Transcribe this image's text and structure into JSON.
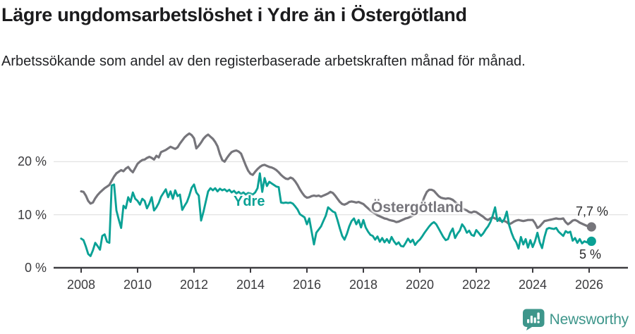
{
  "header": {
    "title": "Lägre ungdomsarbetslöshet i Ydre än i Östergötland",
    "subtitle": "Arbetssökande som andel av den registerbaserade arbetskraften månad för månad."
  },
  "colors": {
    "teal": "#0aa195",
    "gray": "#76757b",
    "axis": "#3d3c40",
    "grid": "#e4e4e4",
    "text": "#222326",
    "logo": "#3e968b"
  },
  "chart_data": {
    "type": "line",
    "x_start_year": 2008,
    "points_per_year": 12,
    "x_end_label_year": 2026,
    "x_axis_ticks": [
      2008,
      2010,
      2012,
      2014,
      2016,
      2018,
      2020,
      2022,
      2024,
      2026
    ],
    "y_axis_ticks": [
      {
        "value": 0,
        "label": "0 %"
      },
      {
        "value": 10,
        "label": "10 %"
      },
      {
        "value": 20,
        "label": "20 %"
      }
    ],
    "ylim": [
      0,
      26
    ],
    "grid": "horizontal",
    "legend_position": "inline-annotations",
    "series": [
      {
        "name": "Östergötland",
        "color": "#76757b",
        "width": 3.2,
        "label_annotation": "Östergötland",
        "end_label": "7,7 %",
        "end_value": 7.7,
        "values": [
          14.4,
          14.3,
          13.6,
          12.6,
          12.1,
          12.3,
          13.1,
          13.7,
          14.2,
          14.6,
          15.0,
          15.3,
          15.6,
          16.4,
          17.2,
          17.8,
          18.1,
          18.4,
          18.2,
          18.7,
          19.0,
          18.4,
          18.0,
          18.8,
          19.6,
          20.0,
          20.3,
          20.4,
          20.7,
          20.9,
          20.7,
          20.4,
          21.1,
          20.8,
          21.8,
          22.0,
          22.2,
          22.5,
          22.8,
          22.6,
          22.4,
          22.7,
          23.4,
          24.0,
          24.6,
          25.0,
          25.3,
          25.0,
          24.4,
          22.5,
          23.0,
          23.6,
          24.3,
          24.8,
          25.1,
          24.7,
          24.3,
          23.7,
          22.9,
          21.4,
          20.3,
          20.0,
          20.7,
          21.3,
          21.8,
          22.0,
          22.1,
          21.9,
          21.5,
          20.4,
          19.3,
          18.3,
          17.7,
          17.5,
          18.1,
          18.6,
          19.0,
          19.3,
          19.4,
          19.2,
          19.0,
          18.9,
          18.7,
          18.4,
          18.0,
          17.5,
          17.1,
          16.8,
          16.7,
          17.0,
          16.8,
          16.3,
          15.6,
          14.8,
          14.1,
          13.5,
          13.2,
          13.3,
          13.5,
          13.6,
          13.5,
          13.6,
          13.4,
          13.6,
          13.8,
          14.0,
          14.3,
          14.1,
          13.6,
          13.0,
          12.4,
          12.0,
          11.9,
          12.1,
          12.4,
          12.5,
          12.4,
          12.3,
          12.4,
          12.2,
          12.0,
          11.6,
          11.2,
          10.8,
          10.5,
          10.2,
          9.9,
          9.7,
          9.5,
          9.3,
          9.2,
          9.0,
          8.9,
          8.8,
          8.6,
          8.7,
          8.9,
          9.1,
          9.3,
          9.4,
          9.6,
          9.8,
          10.1,
          10.6,
          11.3,
          12.2,
          13.4,
          14.3,
          14.7,
          14.7,
          14.5,
          14.0,
          13.5,
          13.2,
          13.1,
          13.0,
          13.1,
          13.0,
          12.8,
          12.4,
          12.0,
          11.6,
          11.2,
          11.0,
          10.8,
          10.5,
          10.4,
          10.6,
          10.5,
          10.2,
          9.9,
          9.6,
          9.2,
          9.0,
          9.3,
          9.5,
          9.3,
          9.1,
          8.9,
          8.8,
          8.8,
          8.6,
          8.2,
          8.4,
          8.7,
          8.9,
          9.0,
          8.9,
          8.8,
          8.9,
          9.0,
          9.0,
          9.0,
          8.4,
          7.5,
          7.8,
          8.3,
          8.8,
          8.9,
          9.0,
          9.1,
          9.2,
          9.3,
          9.2,
          9.2,
          9.3,
          8.6,
          8.2,
          8.5,
          8.9,
          9.0,
          8.8,
          8.5,
          8.3,
          8.1,
          7.9,
          7.8,
          7.7
        ]
      },
      {
        "name": "Ydre",
        "color": "#0aa195",
        "width": 2.9,
        "label_annotation": "Ydre",
        "end_label": "5 %",
        "end_value": 5,
        "values": [
          5.5,
          5.2,
          4.0,
          2.6,
          2.2,
          3.3,
          4.7,
          4.1,
          3.4,
          6.0,
          6.3,
          4.9,
          4.7,
          15.5,
          15.7,
          10.8,
          9.1,
          7.5,
          11.7,
          11.2,
          13.3,
          12.4,
          14.2,
          13.0,
          12.6,
          11.9,
          13.0,
          12.6,
          11.2,
          12.1,
          13.3,
          10.8,
          11.4,
          12.2,
          13.4,
          14.1,
          14.8,
          13.3,
          14.4,
          13.0,
          14.6,
          13.5,
          13.8,
          10.9,
          11.7,
          12.4,
          13.6,
          15.1,
          15.7,
          14.2,
          13.6,
          8.9,
          10.5,
          12.5,
          14.4,
          15.0,
          14.6,
          15.0,
          14.4,
          14.9,
          14.6,
          14.8,
          14.4,
          14.7,
          14.2,
          14.5,
          14.0,
          14.3,
          13.9,
          14.2,
          13.8,
          14.1,
          14.0,
          13.8,
          14.2,
          15.0,
          17.8,
          14.3,
          16.9,
          15.4,
          16.2,
          15.9,
          15.6,
          15.3,
          15.2,
          12.3,
          12.2,
          12.3,
          12.2,
          12.3,
          12.1,
          11.6,
          11.0,
          10.1,
          9.8,
          9.5,
          8.2,
          9.3,
          6.8,
          4.4,
          6.6,
          7.2,
          7.8,
          8.8,
          9.8,
          11.4,
          11.0,
          10.6,
          10.4,
          9.0,
          7.4,
          6.0,
          5.3,
          6.4,
          7.8,
          8.8,
          9.3,
          8.2,
          9.0,
          7.6,
          9.0,
          7.6,
          6.8,
          6.2,
          6.0,
          5.3,
          5.9,
          4.9,
          5.6,
          4.8,
          5.4,
          4.7,
          5.8,
          5.0,
          4.4,
          4.8,
          4.1,
          4.0,
          4.7,
          5.5,
          4.8,
          5.3,
          4.3,
          4.9,
          5.3,
          5.9,
          6.6,
          7.2,
          7.8,
          8.3,
          8.6,
          8.2,
          7.4,
          6.6,
          5.8,
          5.2,
          5.4,
          6.6,
          7.4,
          5.6,
          6.4,
          7.0,
          8.2,
          7.6,
          6.6,
          7.0,
          6.2,
          6.0,
          7.1,
          6.6,
          6.0,
          6.5,
          7.2,
          7.8,
          8.6,
          9.8,
          11.4,
          8.8,
          9.4,
          8.6,
          9.2,
          10.6,
          8.0,
          6.6,
          5.5,
          4.8,
          3.6,
          5.8,
          4.4,
          5.4,
          3.8,
          5.2,
          3.9,
          5.0,
          6.6,
          4.8,
          3.7,
          5.8,
          7.3,
          7.5,
          7.4,
          7.3,
          7.5,
          6.8,
          6.4,
          6.0,
          6.9,
          6.6,
          6.8,
          5.1,
          5.6,
          4.7,
          5.4,
          4.6,
          5.0,
          4.8,
          5.2,
          5.0
        ]
      }
    ]
  },
  "footer": {
    "brand": "Newsworthy",
    "logo_icon": "newsworthy-speech-bubble-bar-chart"
  }
}
